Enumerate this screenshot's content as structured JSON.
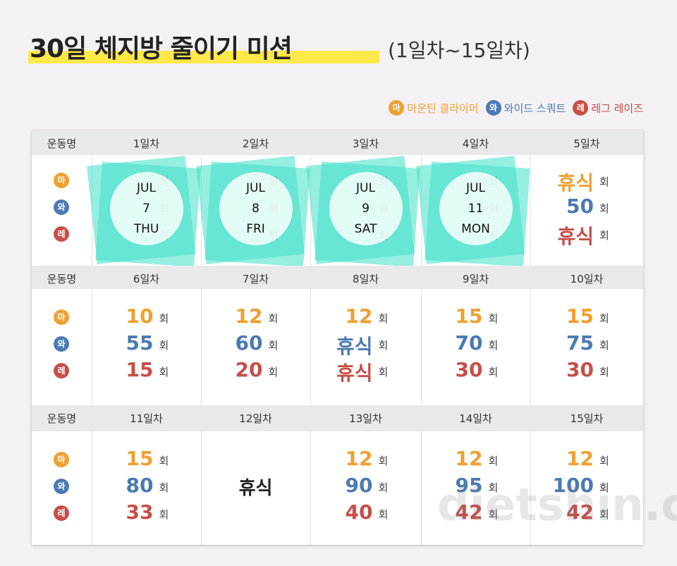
{
  "header": {
    "title": "30일 체지방 줄이기 미션",
    "subtitle": "(1일차~15일차)"
  },
  "legend": [
    {
      "badge": "마",
      "name": "마운틴 클라이머",
      "color": "#f0a030"
    },
    {
      "badge": "와",
      "name": "와이드 스쿼트",
      "color": "#4a7ab4"
    },
    {
      "badge": "레",
      "name": "레그 레이즈",
      "color": "#c84e48"
    }
  ],
  "table": {
    "header_label": "운동명",
    "unit": "회",
    "blocks": [
      {
        "days": [
          "1일차",
          "2일차",
          "3일차",
          "4일차",
          "5일차"
        ],
        "cells": [
          {
            "stamp": {
              "month": "JUL",
              "day": "7",
              "weekday": "THU"
            }
          },
          {
            "stamp": {
              "month": "JUL",
              "day": "8",
              "weekday": "FRI"
            }
          },
          {
            "stamp": {
              "month": "JUL",
              "day": "9",
              "weekday": "SAT"
            }
          },
          {
            "stamp": {
              "month": "JUL",
              "day": "11",
              "weekday": "MON"
            }
          },
          {
            "values": [
              "휴식",
              50,
              "휴식"
            ]
          }
        ]
      },
      {
        "days": [
          "6일차",
          "7일차",
          "8일차",
          "9일차",
          "10일차"
        ],
        "cells": [
          {
            "values": [
              10,
              55,
              15
            ]
          },
          {
            "values": [
              12,
              60,
              20
            ]
          },
          {
            "values": [
              12,
              "휴식",
              "휴식"
            ]
          },
          {
            "values": [
              15,
              70,
              30
            ]
          },
          {
            "values": [
              15,
              75,
              30
            ]
          }
        ]
      },
      {
        "days": [
          "11일차",
          "12일차",
          "13일차",
          "14일차",
          "15일차"
        ],
        "cells": [
          {
            "values": [
              15,
              80,
              33
            ]
          },
          {
            "rest": "휴식"
          },
          {
            "values": [
              12,
              90,
              40
            ]
          },
          {
            "values": [
              12,
              95,
              42
            ]
          },
          {
            "values": [
              12,
              100,
              42
            ]
          }
        ]
      }
    ]
  },
  "watermark": "dietshin.com"
}
